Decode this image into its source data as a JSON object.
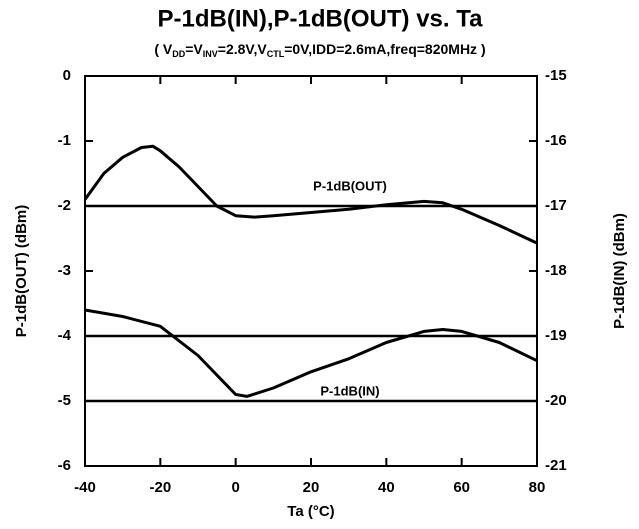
{
  "chart_data": {
    "type": "line",
    "title": "P-1dB(IN),P-1dB(OUT) vs. Ta",
    "subtitle": [
      "( V",
      "DD",
      "=V",
      "INV",
      "=2.8V,V",
      "CTL",
      "=0V,IDD=2.6mA,freq=820MHz )"
    ],
    "x_label": "Ta (°C)",
    "y_label": "P-1dB(OUT) (dBm)",
    "y2_label": "P-1dB(IN) (dBm)",
    "xlim": [
      -40,
      80
    ],
    "xticks": [
      -40,
      -20,
      0,
      20,
      40,
      60,
      80
    ],
    "ylim": [
      -6,
      0
    ],
    "yticks": [
      -6,
      -5,
      -4,
      -3,
      -2,
      -1,
      0
    ],
    "y2lim": [
      -21,
      -15
    ],
    "y2ticks": [
      -21,
      -20,
      -19,
      -18,
      -17,
      -16,
      -15
    ],
    "reference_lines": [
      -2,
      -4,
      -5
    ],
    "series": [
      {
        "name": "P-1dB(OUT)",
        "color": "#000000",
        "x": [
          -40,
          -35,
          -30,
          -25,
          -22,
          -20,
          -15,
          -10,
          -5,
          0,
          5,
          10,
          20,
          30,
          40,
          50,
          55,
          60,
          70,
          80
        ],
        "values": [
          -1.9,
          -1.5,
          -1.25,
          -1.1,
          -1.08,
          -1.15,
          -1.4,
          -1.7,
          -2.0,
          -2.15,
          -2.17,
          -2.15,
          -2.1,
          -2.05,
          -1.98,
          -1.93,
          -1.95,
          -2.05,
          -2.3,
          -2.57
        ]
      },
      {
        "name": "P-1dB(IN)",
        "color": "#000000",
        "axis": "y2",
        "x": [
          -40,
          -30,
          -20,
          -10,
          -5,
          0,
          3,
          10,
          20,
          30,
          40,
          50,
          55,
          60,
          70,
          80
        ],
        "values": [
          -18.6,
          -18.7,
          -18.85,
          -19.3,
          -19.6,
          -19.9,
          -19.93,
          -19.8,
          -19.55,
          -19.35,
          -19.1,
          -18.93,
          -18.9,
          -18.93,
          -19.1,
          -19.38
        ]
      }
    ]
  }
}
